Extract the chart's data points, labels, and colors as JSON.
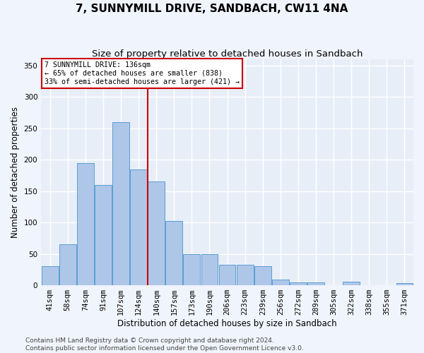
{
  "title": "7, SUNNYMILL DRIVE, SANDBACH, CW11 4NA",
  "subtitle": "Size of property relative to detached houses in Sandbach",
  "xlabel": "Distribution of detached houses by size in Sandbach",
  "ylabel": "Number of detached properties",
  "categories": [
    "41sqm",
    "58sqm",
    "74sqm",
    "91sqm",
    "107sqm",
    "124sqm",
    "140sqm",
    "157sqm",
    "173sqm",
    "190sqm",
    "206sqm",
    "223sqm",
    "239sqm",
    "256sqm",
    "272sqm",
    "289sqm",
    "305sqm",
    "322sqm",
    "338sqm",
    "355sqm",
    "371sqm"
  ],
  "values": [
    30,
    65,
    195,
    160,
    260,
    185,
    165,
    103,
    50,
    50,
    33,
    33,
    30,
    9,
    5,
    5,
    0,
    6,
    0,
    0,
    3
  ],
  "bar_color": "#aec6e8",
  "bar_edge_color": "#5a9fd4",
  "vline_x_index": 6.0,
  "annotation_text": "7 SUNNYMILL DRIVE: 136sqm\n← 65% of detached houses are smaller (838)\n33% of semi-detached houses are larger (421) →",
  "annotation_box_color": "#ffffff",
  "annotation_box_edge": "#cc0000",
  "vline_color": "#cc0000",
  "ylim": [
    0,
    360
  ],
  "yticks": [
    0,
    50,
    100,
    150,
    200,
    250,
    300,
    350
  ],
  "footer_line1": "Contains HM Land Registry data © Crown copyright and database right 2024.",
  "footer_line2": "Contains public sector information licensed under the Open Government Licence v3.0.",
  "background_color": "#e8eef8",
  "fig_background_color": "#f0f4fc",
  "grid_color": "#ffffff",
  "title_fontsize": 11,
  "subtitle_fontsize": 9.5,
  "axis_label_fontsize": 8.5,
  "tick_fontsize": 7.5,
  "footer_fontsize": 6.5
}
